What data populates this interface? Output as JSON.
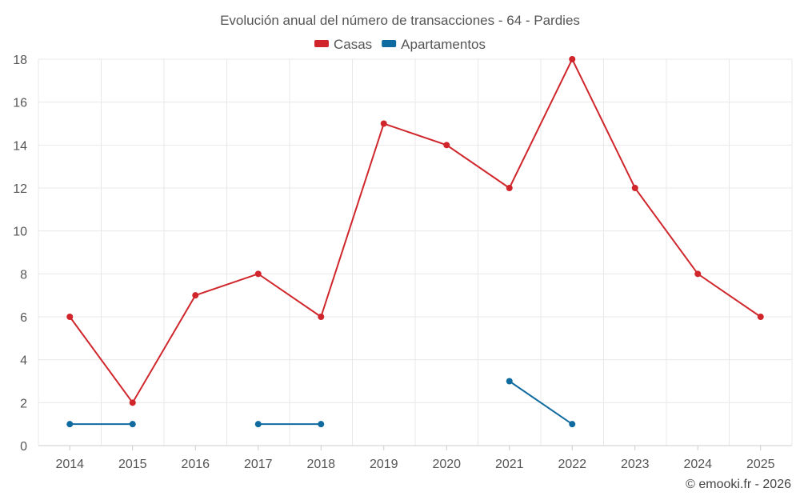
{
  "chart_data": {
    "type": "line",
    "title": "Evolución anual del número de transacciones - 64 - Pardies",
    "categories": [
      "2014",
      "2015",
      "2016",
      "2017",
      "2018",
      "2019",
      "2020",
      "2021",
      "2022",
      "2023",
      "2024",
      "2025"
    ],
    "ylim": [
      0,
      18
    ],
    "yticks": [
      0,
      2,
      4,
      6,
      8,
      10,
      12,
      14,
      16,
      18
    ],
    "grid": true,
    "legend_position": "top-center",
    "series": [
      {
        "name": "Casas",
        "color": "#d0262b",
        "values": [
          6,
          2,
          7,
          8,
          6,
          15,
          14,
          12,
          18,
          12,
          8,
          6
        ]
      },
      {
        "name": "Apartamentos",
        "color": "#0f6aa0",
        "values": [
          1,
          1,
          null,
          1,
          1,
          null,
          null,
          3,
          1,
          null,
          null,
          null
        ]
      }
    ]
  },
  "credit": "© emooki.fr - 2026"
}
